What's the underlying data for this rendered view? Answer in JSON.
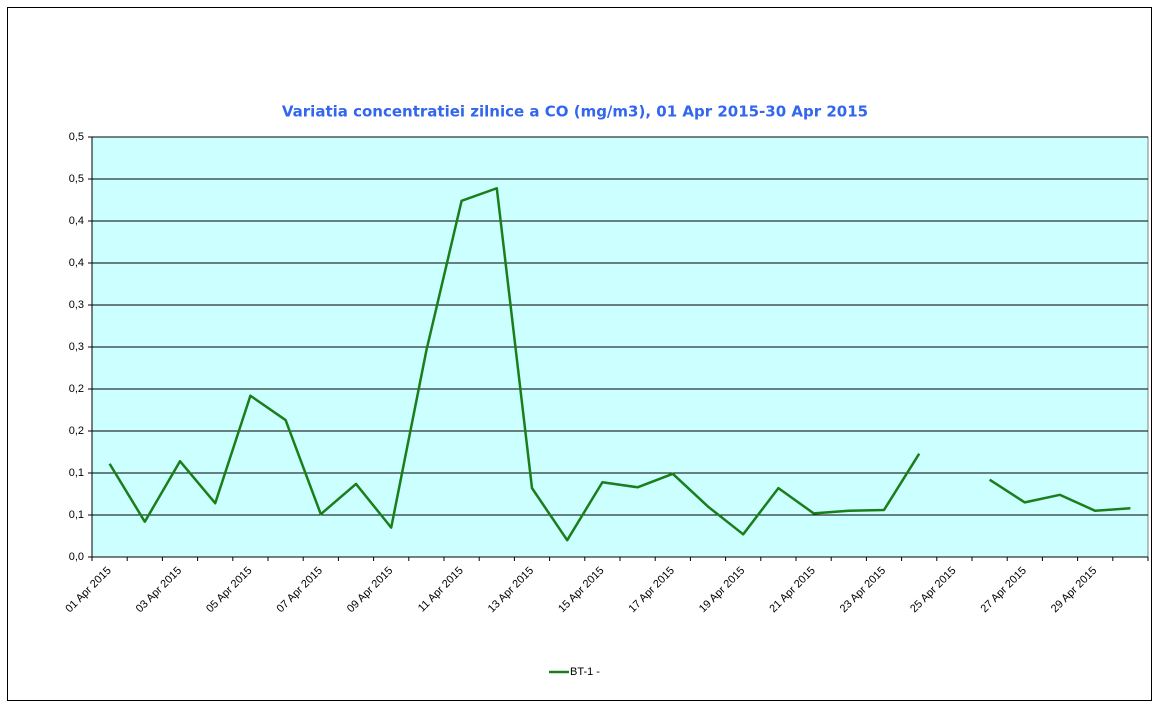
{
  "chart_data": {
    "type": "line",
    "title": "Variatia concentratiei zilnice a CO (mg/m3),  01 Apr 2015-30 Apr 2015",
    "categories": [
      "01 Apr 2015",
      null,
      "03 Apr 2015",
      null,
      "05 Apr 2015",
      null,
      "07 Apr 2015",
      null,
      "09 Apr 2015",
      null,
      "11 Apr 2015",
      null,
      "13 Apr 2015",
      null,
      "15 Apr 2015",
      null,
      "17 Apr 2015",
      null,
      "19 Apr 2015",
      null,
      "21 Apr 2015",
      null,
      "23 Apr 2015",
      null,
      "25 Apr 2015",
      null,
      "27 Apr 2015",
      null,
      "29 Apr 2015",
      null
    ],
    "series": [
      {
        "name": "BT-1 -",
        "color": "#1a7f1a",
        "values": [
          0.111,
          0.042,
          0.114,
          0.064,
          0.192,
          0.163,
          0.051,
          0.087,
          0.035,
          0.246,
          0.424,
          0.439,
          0.082,
          0.02,
          0.089,
          0.083,
          0.099,
          0.06,
          0.027,
          0.082,
          0.052,
          0.055,
          0.056,
          0.123,
          null,
          0.092,
          0.065,
          0.074,
          0.055,
          0.058
        ]
      }
    ],
    "ylim": [
      0,
      0.5
    ],
    "yticks": [
      {
        "value": 0,
        "label": "0,0"
      },
      {
        "value": 0.05,
        "label": "0,1"
      },
      {
        "value": 0.1,
        "label": "0,1"
      },
      {
        "value": 0.15,
        "label": "0,2"
      },
      {
        "value": 0.2,
        "label": "0,2"
      },
      {
        "value": 0.25,
        "label": "0,3"
      },
      {
        "value": 0.3,
        "label": "0,3"
      },
      {
        "value": 0.35,
        "label": "0,4"
      },
      {
        "value": 0.4,
        "label": "0,4"
      },
      {
        "value": 0.45,
        "label": "0,5"
      },
      {
        "value": 0.5,
        "label": "0,5"
      }
    ],
    "grid": true,
    "legend": "bottom",
    "plot_background": "#ccffff"
  }
}
